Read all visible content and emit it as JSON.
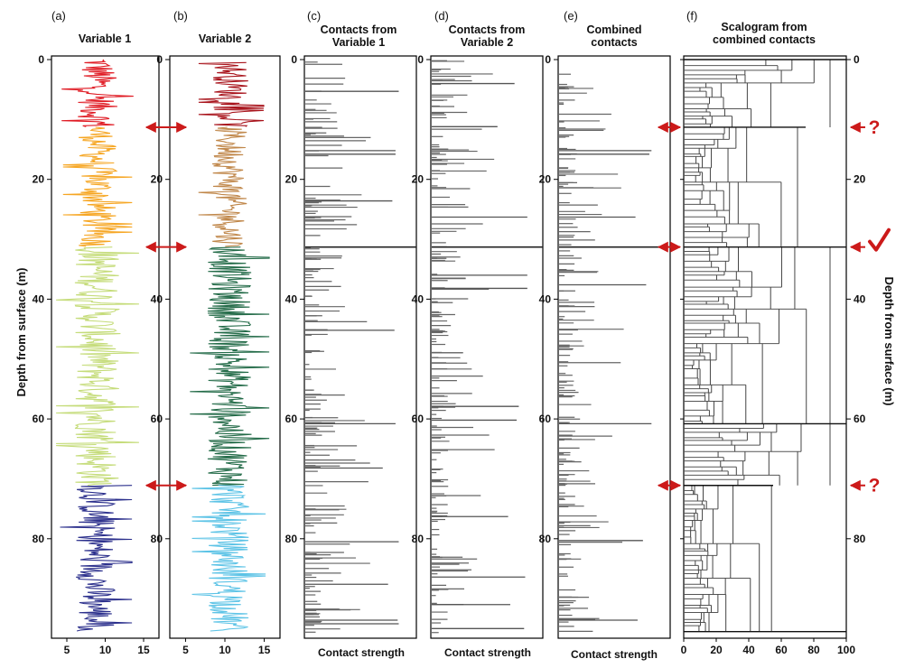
{
  "figure": {
    "y_axis_title": "Depth from surface (m)",
    "panels": [
      {
        "id": "a",
        "label": "(a)",
        "title": "Variable 1",
        "kind": "log"
      },
      {
        "id": "b",
        "label": "(b)",
        "title": "Variable 2",
        "kind": "log"
      },
      {
        "id": "c",
        "label": "(c)",
        "title_lines": [
          "Contacts from",
          "Variable 1"
        ],
        "kind": "contacts",
        "x_label": "Contact strength"
      },
      {
        "id": "d",
        "label": "(d)",
        "title_lines": [
          "Contacts from",
          "Variable 2"
        ],
        "kind": "contacts",
        "x_label": "Contact strength"
      },
      {
        "id": "e",
        "label": "(e)",
        "title_lines": [
          "Combined",
          "contacts"
        ],
        "kind": "contacts",
        "x_label": "Contact strength"
      },
      {
        "id": "f",
        "label": "(f)",
        "title_lines": [
          "Scalogram from",
          "combined contacts"
        ],
        "kind": "scalogram"
      }
    ],
    "annotations": {
      "question_mark": "?",
      "check_mark": "✓"
    },
    "colors": {
      "red": "#e01b24",
      "orange": "#f6a623",
      "lightgreen": "#c5dc7a",
      "navy": "#2b2f8c",
      "darkred": "#a8131b",
      "brown": "#c0874a",
      "darkgreen": "#236b48",
      "skyblue": "#5cc3e6",
      "contact": "#666666",
      "arrow": "#cc1a1a"
    }
  },
  "chart_data": [
    {
      "type": "line",
      "panel": "a",
      "title": "Variable 1",
      "x_ticks": [
        5,
        10,
        15
      ],
      "y_ticks": [
        0,
        20,
        40,
        60,
        80
      ],
      "xlim": [
        3,
        17
      ],
      "ylim": [
        0,
        97
      ],
      "ylabel": "Depth from surface (m)",
      "segments": [
        {
          "from": 0,
          "to": 11.3,
          "color": "red",
          "mean": 9.0,
          "amp": 2.6
        },
        {
          "from": 11.3,
          "to": 31.3,
          "color": "orange",
          "mean": 9.0,
          "amp": 2.5
        },
        {
          "from": 31.3,
          "to": 71.1,
          "color": "lightgreen",
          "mean": 9.0,
          "amp": 3.0
        },
        {
          "from": 71.1,
          "to": 95.5,
          "color": "navy",
          "mean": 8.8,
          "amp": 2.6
        }
      ]
    },
    {
      "type": "line",
      "panel": "b",
      "title": "Variable 2",
      "x_ticks": [
        5,
        10,
        15
      ],
      "y_ticks": [
        0,
        20,
        40,
        60,
        80
      ],
      "xlim": [
        3,
        17
      ],
      "ylim": [
        0,
        97
      ],
      "segments": [
        {
          "from": 0.5,
          "to": 11.3,
          "color": "darkred",
          "mean": 10.8,
          "amp": 2.3
        },
        {
          "from": 11.3,
          "to": 31.3,
          "color": "brown",
          "mean": 10.6,
          "amp": 2.2
        },
        {
          "from": 31.3,
          "to": 71.1,
          "color": "darkgreen",
          "mean": 10.6,
          "amp": 2.8
        },
        {
          "from": 71.1,
          "to": 95.5,
          "color": "skyblue",
          "mean": 10.5,
          "amp": 2.6
        }
      ]
    },
    {
      "type": "bar",
      "panel": "c",
      "title": "Contacts from Variable 1",
      "xlabel": "Contact strength",
      "y_ticks": [
        0,
        20,
        40,
        60,
        80
      ],
      "ylim": [
        0,
        97
      ],
      "xlim": [
        0,
        100
      ],
      "strong_contacts": [
        {
          "depth": 5.3,
          "strength": 86
        },
        {
          "depth": 15.2,
          "strength": 83
        },
        {
          "depth": 15.8,
          "strength": 83
        },
        {
          "depth": 23.6,
          "strength": 80
        },
        {
          "depth": 31.3,
          "strength": 100
        },
        {
          "depth": 45.2,
          "strength": 82
        },
        {
          "depth": 60.8,
          "strength": 83
        },
        {
          "depth": 68.2,
          "strength": 71
        },
        {
          "depth": 80.5,
          "strength": 86
        },
        {
          "depth": 87.6,
          "strength": 76
        },
        {
          "depth": 93.6,
          "strength": 85
        },
        {
          "depth": 94.2,
          "strength": 86
        }
      ],
      "minor_contact_count": 170
    },
    {
      "type": "bar",
      "panel": "d",
      "title": "Contacts from Variable 2",
      "xlabel": "Contact strength",
      "y_ticks": [
        0,
        20,
        40,
        60,
        80
      ],
      "ylim": [
        0,
        97
      ],
      "xlim": [
        0,
        100
      ],
      "strong_contacts": [
        {
          "depth": 4.0,
          "strength": 76
        },
        {
          "depth": 11.2,
          "strength": 60
        },
        {
          "depth": 26.3,
          "strength": 88
        },
        {
          "depth": 31.3,
          "strength": 100
        },
        {
          "depth": 36.0,
          "strength": 88
        },
        {
          "depth": 38.2,
          "strength": 88
        },
        {
          "depth": 57.9,
          "strength": 80
        },
        {
          "depth": 60.2,
          "strength": 78
        },
        {
          "depth": 76.3,
          "strength": 70
        },
        {
          "depth": 86.4,
          "strength": 86
        },
        {
          "depth": 91.0,
          "strength": 72
        },
        {
          "depth": 95.0,
          "strength": 85
        }
      ],
      "minor_contact_count": 170
    },
    {
      "type": "bar",
      "panel": "e",
      "title": "Combined contacts",
      "xlabel": "Contact strength",
      "y_ticks": [
        0,
        20,
        40,
        60,
        80
      ],
      "ylim": [
        0,
        97
      ],
      "xlim": [
        0,
        100
      ],
      "strong_contacts": [
        {
          "depth": 15.2,
          "strength": 85
        },
        {
          "depth": 15.8,
          "strength": 83
        },
        {
          "depth": 26.3,
          "strength": 70
        },
        {
          "depth": 31.3,
          "strength": 100
        },
        {
          "depth": 37.6,
          "strength": 80
        },
        {
          "depth": 60.8,
          "strength": 85
        },
        {
          "depth": 80.3,
          "strength": 77
        },
        {
          "depth": 93.6,
          "strength": 72
        }
      ],
      "minor_contact_count": 170
    },
    {
      "type": "scalogram",
      "panel": "f",
      "title": "Scalogram from combined contacts",
      "x_ticks": [
        0,
        20,
        40,
        60,
        80,
        100
      ],
      "y_ticks": [
        0,
        20,
        40,
        60,
        80
      ],
      "ylim": [
        0,
        97
      ],
      "xlim": [
        0,
        100
      ],
      "right_axis_label": "Depth from surface (m)",
      "boundaries": [
        {
          "depth": 0,
          "scale": 100
        },
        {
          "depth": 11.3,
          "scale": 75
        },
        {
          "depth": 31.3,
          "scale": 100
        },
        {
          "depth": 60.8,
          "scale": 100
        },
        {
          "depth": 71.1,
          "scale": 55
        },
        {
          "depth": 95.5,
          "scale": 100
        }
      ],
      "annotations": [
        {
          "depth": 11.3,
          "mark": "?"
        },
        {
          "depth": 31.3,
          "mark": "check"
        },
        {
          "depth": 71.1,
          "mark": "?"
        }
      ]
    }
  ]
}
